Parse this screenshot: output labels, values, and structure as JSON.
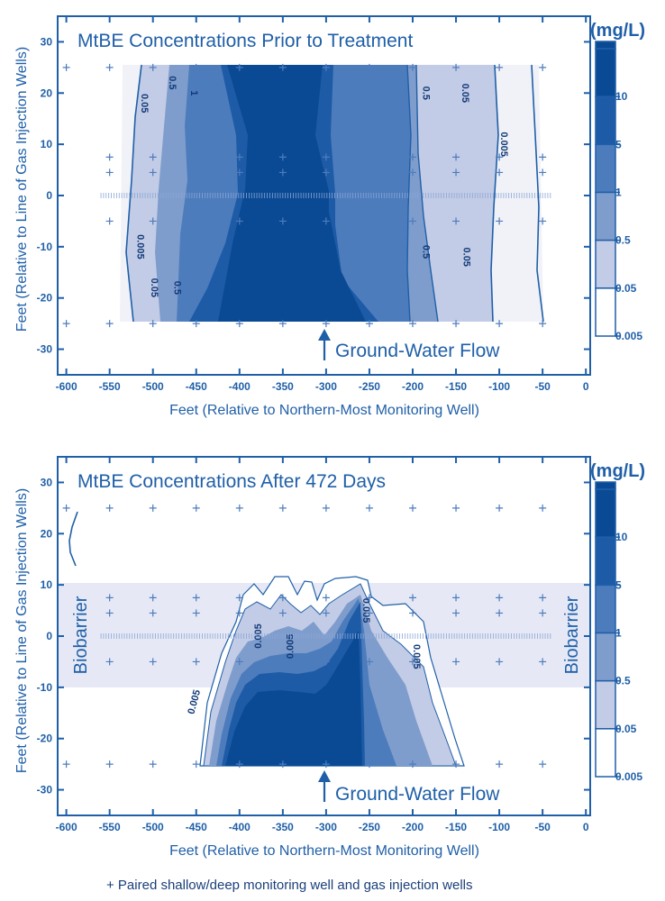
{
  "chart_data": [
    {
      "type": "heatmap",
      "title": "MtBE Concentrations Prior to Treatment",
      "xlabel": "Feet (Relative to Northern-Most Monitoring Well)",
      "ylabel": "Feet (Relative to Line of Gas Injection Wells)",
      "xlim": [
        -610,
        5
      ],
      "ylim": [
        -35,
        35
      ],
      "x_ticks": [
        -600,
        -550,
        -500,
        -450,
        -400,
        -350,
        -300,
        -250,
        -200,
        -150,
        -100,
        -50,
        0
      ],
      "y_ticks": [
        -30,
        -20,
        -10,
        0,
        10,
        20,
        30
      ],
      "units_label": "(mg/L)",
      "colorbar": [
        {
          "value": "10",
          "level": 10
        },
        {
          "value": "5",
          "level": 5
        },
        {
          "value": "1",
          "level": 1
        },
        {
          "value": "0.5",
          "level": 0.5
        },
        {
          "value": "0.05",
          "level": 0.05
        },
        {
          "value": "0.005",
          "level": 0.005
        }
      ],
      "annotation": "Ground-Water Flow",
      "plume_extent": {
        "x": [
          -535,
          -45
        ],
        "y": [
          -25,
          25
        ]
      },
      "contour_labels": [
        {
          "text": "0.05",
          "x": -513,
          "y": 18,
          "rot": 90
        },
        {
          "text": "0.5",
          "x": -481,
          "y": 22,
          "rot": 90
        },
        {
          "text": "1",
          "x": -456,
          "y": 20,
          "rot": 90
        },
        {
          "text": "0.005",
          "x": -518,
          "y": -10,
          "rot": 90
        },
        {
          "text": "0.05",
          "x": -502,
          "y": -18,
          "rot": 90
        },
        {
          "text": "0.5",
          "x": -475,
          "y": -18,
          "rot": 90
        },
        {
          "text": "0.5",
          "x": -188,
          "y": 20,
          "rot": 90
        },
        {
          "text": "0.05",
          "x": -143,
          "y": 20,
          "rot": 90
        },
        {
          "text": "0.005",
          "x": -98,
          "y": 10,
          "rot": 90
        },
        {
          "text": "0.5",
          "x": -188,
          "y": -11,
          "rot": 90
        },
        {
          "text": "0.05",
          "x": -141,
          "y": -12,
          "rot": 90
        }
      ]
    },
    {
      "type": "heatmap",
      "title": "MtBE Concentrations After 472 Days",
      "xlabel": "Feet (Relative to Northern-Most Monitoring Well)",
      "ylabel": "Feet (Relative to Line of Gas Injection Wells)",
      "xlim": [
        -610,
        5
      ],
      "ylim": [
        -35,
        35
      ],
      "x_ticks": [
        -600,
        -550,
        -500,
        -450,
        -400,
        -350,
        -300,
        -250,
        -200,
        -150,
        -100,
        -50,
        0
      ],
      "y_ticks": [
        -30,
        -20,
        -10,
        0,
        10,
        20,
        30
      ],
      "units_label": "(mg/L)",
      "colorbar": [
        {
          "value": "10",
          "level": 10
        },
        {
          "value": "5",
          "level": 5
        },
        {
          "value": "1",
          "level": 1
        },
        {
          "value": "0.5",
          "level": 0.5
        },
        {
          "value": "0.05",
          "level": 0.05
        },
        {
          "value": "0.005",
          "level": 0.005
        }
      ],
      "annotation": "Ground-Water Flow",
      "biobarrier_label": "Biobarrier",
      "biobarrier_y": [
        -10,
        10
      ],
      "contour_labels": [
        {
          "text": "0.005",
          "x": -449,
          "y": -13,
          "rot": -75
        },
        {
          "text": "0.005",
          "x": -375,
          "y": 0,
          "rot": -90
        },
        {
          "text": "0.005",
          "x": -338,
          "y": -2,
          "rot": -90
        },
        {
          "text": "0.005",
          "x": -257,
          "y": 5,
          "rot": 90
        },
        {
          "text": "0.005",
          "x": -199,
          "y": -4,
          "rot": 90
        }
      ]
    }
  ],
  "footer": {
    "legend_text": "+ Paired shallow/deep monitoring well and gas injection wells"
  },
  "colors": {
    "axis": "#1f5fa8",
    "level_0": "#ffffff",
    "level_1": "#f1f2f7",
    "level_2": "#c3cce6",
    "level_3": "#7f9dcc",
    "level_4": "#4d7cbd",
    "level_5": "#1e5ba6",
    "level_6": "#0a4a94",
    "band": "#e6e9f5"
  }
}
